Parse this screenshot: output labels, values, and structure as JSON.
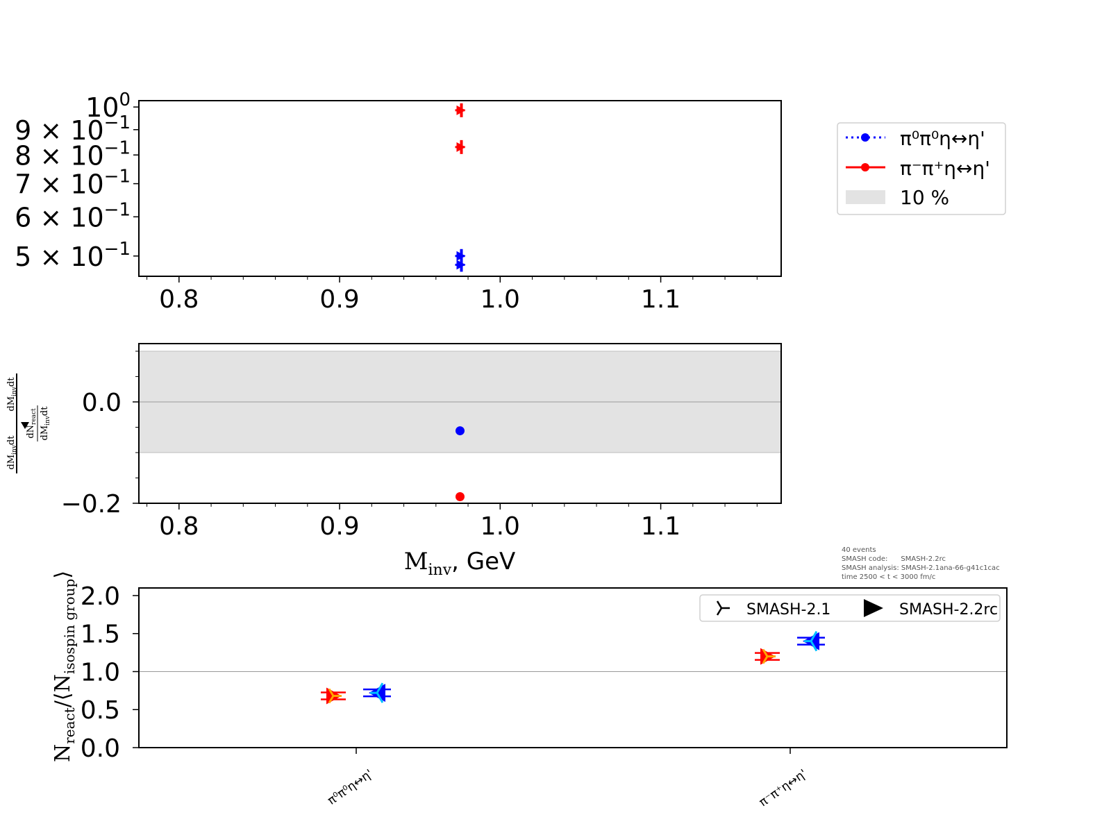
{
  "chart_data": [
    {
      "type": "scatter",
      "panel": "top",
      "yscale": "log",
      "xlim": [
        0.775,
        1.175
      ],
      "ylim": [
        0.455,
        1.03
      ],
      "x_ticks": [
        {
          "value": 0.8,
          "label": "0.8"
        },
        {
          "value": 0.9,
          "label": "0.9"
        },
        {
          "value": 1.0,
          "label": "1.0"
        },
        {
          "value": 1.1,
          "label": "1.1"
        }
      ],
      "y_ticks": [
        {
          "value": 1.0,
          "base": "10",
          "exp": "0"
        },
        {
          "value": 0.9,
          "mant": "9",
          "base": "10",
          "exp": "−1"
        },
        {
          "value": 0.8,
          "mant": "8",
          "base": "10",
          "exp": "−1"
        },
        {
          "value": 0.7,
          "mant": "7",
          "base": "10",
          "exp": "−1"
        },
        {
          "value": 0.6,
          "mant": "6",
          "base": "10",
          "exp": "−1"
        },
        {
          "value": 0.5,
          "mant": "5",
          "base": "10",
          "exp": "−1"
        }
      ],
      "series": [
        {
          "name": "π⁰π⁰η↔η'",
          "color": "#0000ff",
          "points": [
            {
              "x": 0.975,
              "y": 0.5
            },
            {
              "x": 0.975,
              "y": 0.48
            }
          ]
        },
        {
          "name": "π⁻π⁺η↔η'",
          "color": "#ff0000",
          "points": [
            {
              "x": 0.975,
              "y": 0.985
            },
            {
              "x": 0.975,
              "y": 0.83
            }
          ]
        }
      ]
    },
    {
      "type": "scatter",
      "panel": "middle",
      "xlim": [
        0.775,
        1.175
      ],
      "ylim": [
        -0.2,
        0.115
      ],
      "band": [
        -0.1,
        0.1
      ],
      "x_ticks": [
        {
          "value": 0.8,
          "label": "0.8"
        },
        {
          "value": 0.9,
          "label": "0.9"
        },
        {
          "value": 1.0,
          "label": "1.0"
        },
        {
          "value": 1.1,
          "label": "1.1"
        }
      ],
      "y_ticks": [
        {
          "value": 0.0,
          "label": "0.0"
        },
        {
          "value": -0.2,
          "label": "−0.2"
        }
      ],
      "xlabel": {
        "main": "M",
        "sub": "inv",
        "rest": ", GeV"
      },
      "ylabel": {
        "left_num": "dM",
        "left_num_sub": "inv",
        "left_num_rest": "dt",
        "right_num": "dM",
        "right_num_sub": "inv",
        "right_num_rest": "dt",
        "mid_num": "dN",
        "mid_num_sub": "react",
        "mid_den": "dM",
        "mid_den_sub": "inv",
        "mid_den_rest": "dt"
      },
      "series": [
        {
          "color": "#0000ff",
          "points": [
            {
              "x": 0.975,
              "y": -0.057
            }
          ]
        },
        {
          "color": "#ff0000",
          "points": [
            {
              "x": 0.975,
              "y": -0.187
            }
          ]
        }
      ]
    },
    {
      "type": "scatter",
      "panel": "bottom",
      "categories": [
        "π⁰π⁰η↔η'",
        "π⁻π⁺η↔η'"
      ],
      "ylim": [
        0.0,
        2.1
      ],
      "y_ticks": [
        {
          "value": 0.0,
          "label": "0.0"
        },
        {
          "value": 0.5,
          "label": "0.5"
        },
        {
          "value": 1.0,
          "label": "1.0"
        },
        {
          "value": 1.5,
          "label": "1.5"
        },
        {
          "value": 2.0,
          "label": "2.0"
        }
      ],
      "ylabel": {
        "n": "N",
        "n_sub": "react",
        "slash": "/⟨N",
        "iso_sub": "isospin group",
        "close": "⟩"
      },
      "series": [
        {
          "name": "SMASH-2.1",
          "marker": "tri",
          "values": [
            0.68,
            1.2
          ],
          "colors": [
            "#ff0000",
            "#ff0000"
          ],
          "inner_color": "#ffa500"
        },
        {
          "name": "SMASH-2.2rc",
          "marker": "triangle",
          "values": [
            0.72,
            1.4
          ],
          "colors": [
            "#0000ff",
            "#0000ff"
          ],
          "inner_color": "#00bfff"
        }
      ]
    }
  ],
  "legend_top": {
    "items": [
      {
        "label": "π⁰π⁰η↔η'",
        "color": "#0000ff",
        "style": "dotted"
      },
      {
        "label": "π⁻π⁺η↔η'",
        "color": "#ff0000",
        "style": "solid"
      },
      {
        "label": "10 %",
        "color": "#e3e3e3",
        "style": "patch"
      }
    ]
  },
  "legend_bottom": {
    "items": [
      {
        "label": "SMASH-2.1",
        "marker": "tri"
      },
      {
        "label": "SMASH-2.2rc",
        "marker": "triangle"
      }
    ]
  },
  "info_text": [
    "40 events",
    "SMASH code:      SMASH-2.2rc",
    "SMASH analysis: SMASH-2.1ana-66-g41c1cac",
    "time 2500 < t < 3000 fm/c"
  ],
  "colors": {
    "band": "#e3e3e3",
    "refline": "#999999"
  }
}
